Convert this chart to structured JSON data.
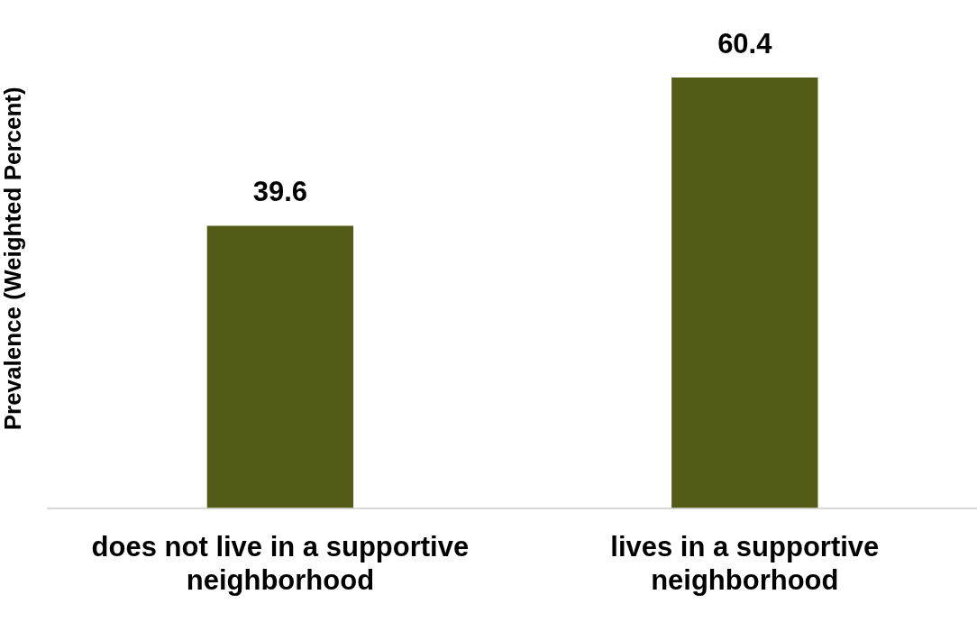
{
  "chart_data": {
    "type": "bar",
    "ylabel": "Prevalence (Weighted Percent)",
    "categories": [
      "does not live in a supportive neighborhood",
      "lives in a supportive neighborhood"
    ],
    "values": [
      39.6,
      60.4
    ],
    "color": "#535b16",
    "data_labels": true,
    "tick_labels": "x"
  }
}
